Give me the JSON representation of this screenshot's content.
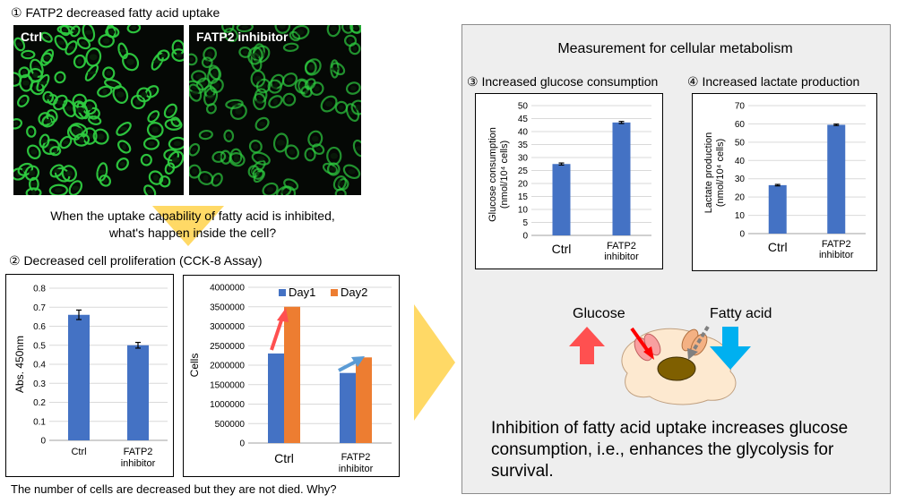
{
  "section1": {
    "title": "① FATP2 decreased fatty acid uptake",
    "ctrl_label": "Ctrl",
    "inhibitor_label": "FATP2 inhibitor"
  },
  "question1": {
    "line1": "When the uptake capability of fatty acid is inhibited,",
    "line2": "what's happen inside the cell?"
  },
  "section2": {
    "title": "② Decreased cell proliferation (CCK-8 Assay)"
  },
  "question2": "The number of cells are decreased but they are not died. Why?",
  "metabolism": {
    "title": "Measurement for cellular metabolism",
    "glucose_title": "③ Increased glucose consumption",
    "lactate_title": "④ Increased lactate production",
    "diagram": {
      "glucose_label": "Glucose",
      "fatty_acid_label": "Fatty acid"
    },
    "conclusion": "Inhibition of fatty acid uptake increases glucose consumption, i.e., enhances the glycolysis for survival."
  },
  "colors": {
    "blue": "#4472c4",
    "orange": "#ed7d31",
    "red_arrow": "#ff5050",
    "blue_arrow": "#00b0f0",
    "cell_fill": "#fde9d0",
    "cell_stroke": "#c0a080",
    "nucleus": "#7f5f00",
    "transporter": "#f8a0a0",
    "transporter2": "#f4b183",
    "fluor": "#2ecc40"
  },
  "chart_data": [
    {
      "id": "cck8",
      "type": "bar",
      "categories": [
        "Ctrl",
        "FATP2 inhibitor"
      ],
      "values": [
        0.66,
        0.5
      ],
      "errors": [
        0.025,
        0.015
      ],
      "ylabel": "Abs. 450nm",
      "ylim": [
        0,
        0.8
      ],
      "yticks": [
        "0",
        "0.1",
        "0.2",
        "0.3",
        "0.4",
        "0.5",
        "0.6",
        "0.7",
        "0.8"
      ],
      "grid": true
    },
    {
      "id": "cells",
      "type": "bar",
      "categories": [
        "Ctrl",
        "FATP2 inhibitor"
      ],
      "series": [
        {
          "name": "Day1",
          "values": [
            2300000,
            1800000
          ],
          "color": "#4472c4"
        },
        {
          "name": "Day2",
          "values": [
            3500000,
            2200000
          ],
          "color": "#ed7d31"
        }
      ],
      "ylabel": "Cells",
      "ylim": [
        0,
        4000000
      ],
      "yticks": [
        "0",
        "500000",
        "1000000",
        "1500000",
        "2000000",
        "2500000",
        "3000000",
        "3500000",
        "4000000"
      ],
      "legend": "top",
      "grid": true
    },
    {
      "id": "glucose",
      "type": "bar",
      "categories": [
        "Ctrl",
        "FATP2 inhibitor"
      ],
      "values": [
        27.5,
        43.5
      ],
      "errors": [
        0.4,
        0.4
      ],
      "ylabel_line1": "Glucose consumption",
      "ylabel_line2": "(nmol/10⁴ cells)",
      "ylim": [
        0,
        50
      ],
      "yticks": [
        "0",
        "5",
        "10",
        "15",
        "20",
        "25",
        "30",
        "35",
        "40",
        "45",
        "50"
      ],
      "grid": true
    },
    {
      "id": "lactate",
      "type": "bar",
      "categories": [
        "Ctrl",
        "FATP2 inhibitor"
      ],
      "values": [
        26.5,
        59.5
      ],
      "errors": [
        0.4,
        0.4
      ],
      "ylabel_line1": "Lactate production",
      "ylabel_line2": "(nmol/10⁴ cells)",
      "ylim": [
        0,
        70
      ],
      "yticks": [
        "0",
        "10",
        "20",
        "30",
        "40",
        "50",
        "60",
        "70"
      ],
      "grid": true
    }
  ]
}
